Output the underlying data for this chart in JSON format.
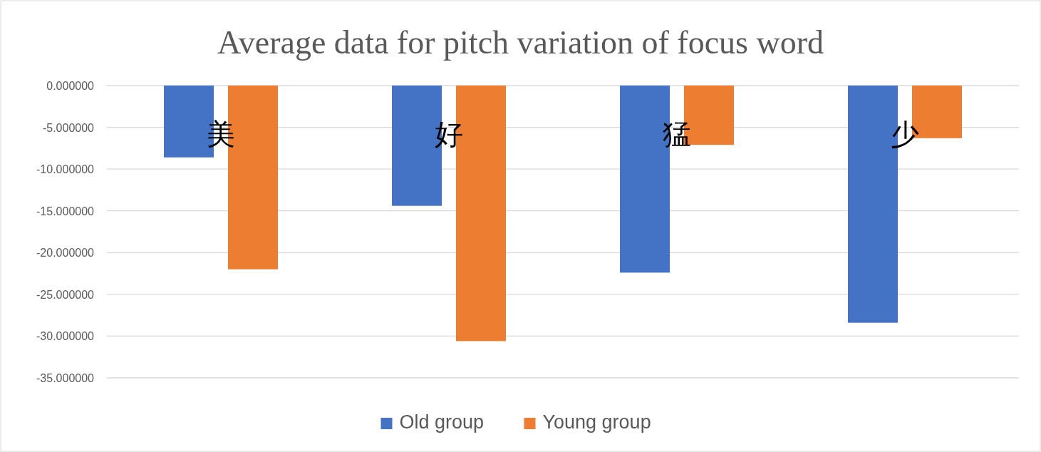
{
  "chart_data": {
    "type": "bar",
    "title": "Average data for pitch variation of focus word",
    "categories": [
      "美",
      "好",
      "猛",
      "少"
    ],
    "series": [
      {
        "name": "Old group",
        "color": "#4472c4",
        "values": [
          -8.6,
          -14.4,
          -22.4,
          -28.4
        ]
      },
      {
        "name": "Young group",
        "color": "#ed7d31",
        "values": [
          -22.0,
          -30.6,
          -7.1,
          -6.3
        ]
      }
    ],
    "ylim": [
      -35,
      0
    ],
    "yticks": [
      {
        "value": 0,
        "label": "0.000000"
      },
      {
        "value": -5,
        "label": "-5.000000"
      },
      {
        "value": -10,
        "label": "-10.000000"
      },
      {
        "value": -15,
        "label": "-15.000000"
      },
      {
        "value": -20,
        "label": "-20.000000"
      },
      {
        "value": -25,
        "label": "-25.000000"
      },
      {
        "value": -30,
        "label": "-30.000000"
      },
      {
        "value": -35,
        "label": "-35.000000"
      }
    ],
    "grid": "y",
    "legend": "bottom"
  }
}
